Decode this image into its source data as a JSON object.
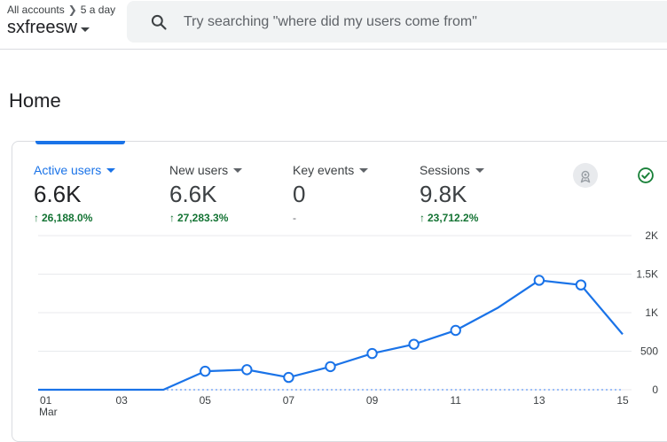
{
  "header": {
    "breadcrumb_root": "All accounts",
    "breadcrumb_account": "5 a day",
    "property_name": "sxfreesw",
    "search_placeholder": "Try searching \"where did my users come from\""
  },
  "page": {
    "title": "Home"
  },
  "metrics": [
    {
      "label": "Active users",
      "value": "6.6K",
      "change": "26,188.0%",
      "trend": "up"
    },
    {
      "label": "New users",
      "value": "6.6K",
      "change": "27,283.3%",
      "trend": "up"
    },
    {
      "label": "Key events",
      "value": "0",
      "change": "-",
      "trend": "none"
    },
    {
      "label": "Sessions",
      "value": "9.8K",
      "change": "23,712.2%",
      "trend": "up"
    }
  ],
  "icons": {
    "badge_left": "insights-icon",
    "badge_right": "check-circle-icon",
    "search": "search-icon"
  },
  "colors": {
    "accent": "#1a73e8",
    "positive": "#137333",
    "line": "#1a73e8"
  },
  "chart_data": {
    "type": "line",
    "x_tick_labels": [
      "01",
      "03",
      "05",
      "07",
      "09",
      "11",
      "13",
      "15"
    ],
    "x_month_label": "Mar",
    "y_tick_labels": [
      "2K",
      "1.5K",
      "1K",
      "500",
      "0"
    ],
    "ylim": [
      0,
      2000
    ],
    "x": [
      1,
      2,
      3,
      4,
      5,
      6,
      7,
      8,
      9,
      10,
      11,
      12,
      13,
      14,
      15
    ],
    "series": [
      {
        "values": [
          0,
          0,
          0,
          0,
          240,
          260,
          160,
          300,
          470,
          590,
          770,
          1060,
          1420,
          1360,
          720
        ]
      },
      {
        "values": [
          0,
          0,
          0,
          0,
          0,
          0,
          0,
          0,
          0,
          0,
          0,
          0,
          0,
          0,
          0
        ],
        "style": "dotted"
      }
    ],
    "markers_from": 5,
    "markers_to": 14,
    "grid": true,
    "y_axis_side": "right"
  }
}
